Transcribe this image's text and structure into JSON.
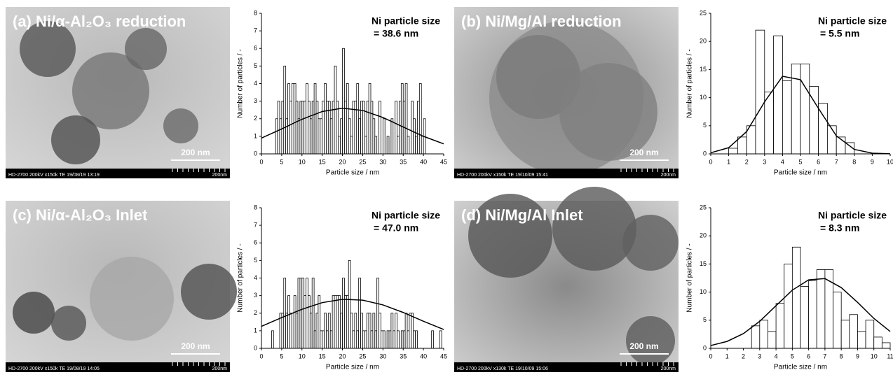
{
  "images": [
    {
      "label": "(a) Ni/α-Al₂O₃ reduction",
      "scale_bar": "200 nm",
      "info": "HD-2700  200kV  x150k  TE  19/08/19  13:19",
      "info_scale": "200nm"
    },
    {
      "label": "(b) Ni/Mg/Al reduction",
      "scale_bar": "200 nm",
      "info": "HD-2700  200kV  x150k  TE  19/10/09  15:41",
      "info_scale": "200nm"
    },
    {
      "label": "(c) Ni/α-Al₂O₃ Inlet",
      "scale_bar": "200 nm",
      "info": "HD-2700  200kV  x150k  TE  19/08/19  14:05",
      "info_scale": "200nm"
    },
    {
      "label": "(d) Ni/Mg/Al Inlet",
      "scale_bar": "200 nm",
      "info": "HD-2700  200kV  x130k  TE  19/10/09  15:06",
      "info_scale": "200nm"
    }
  ],
  "chart_data": [
    {
      "type": "histogram",
      "annotation": [
        "Ni particle size",
        "= 38.6 nm"
      ],
      "xlabel": "Particle size / nm",
      "ylabel": "Number of particles / -",
      "color": "#ffffff",
      "edge_color": "#000000",
      "fit_color": "#000000",
      "bins": [
        3,
        3.5,
        4,
        4.5,
        5,
        5.5,
        6,
        6.5,
        7,
        7.5,
        8,
        8.5,
        9,
        9.5,
        10,
        10.5,
        11,
        11.5,
        12,
        12.5,
        13,
        13.5,
        14,
        14.5,
        15,
        15.5,
        16,
        16.5,
        17,
        17.5,
        18,
        18.5,
        19,
        19.5,
        20,
        20.5,
        21,
        21.5,
        22,
        22.5,
        23,
        23.5,
        24,
        24.5,
        25,
        25.5,
        26,
        26.5,
        27,
        27.5,
        28,
        28.5,
        29,
        29.5,
        30,
        30.5,
        31,
        31.5,
        32,
        32.5,
        33,
        33.5,
        34,
        34.5,
        35,
        35.5,
        36,
        36.5,
        37,
        37.5,
        38,
        38.5,
        39,
        39.5,
        40,
        40.5,
        41
      ],
      "values": [
        0,
        2,
        3,
        2,
        3,
        5,
        2,
        4,
        3,
        4,
        4,
        3,
        2,
        3,
        3,
        3,
        4,
        3,
        2,
        3,
        4,
        3,
        2,
        2,
        3,
        4,
        3,
        3,
        2,
        3,
        5,
        3,
        1,
        2,
        6,
        3,
        4,
        2,
        1,
        3,
        3,
        4,
        2,
        3,
        3,
        1,
        3,
        4,
        3,
        2,
        1,
        0,
        3,
        0,
        2,
        0,
        1,
        0,
        2,
        0,
        3,
        1,
        3,
        4,
        3,
        4,
        1,
        0,
        3,
        2,
        1,
        3,
        4,
        1,
        2,
        0
      ],
      "fit": {
        "x": [
          0,
          5,
          10,
          15,
          20,
          25,
          30,
          35,
          40,
          45
        ],
        "y": [
          0.9,
          1.42,
          1.97,
          2.41,
          2.6,
          2.47,
          2.07,
          1.53,
          1.0,
          0.57
        ]
      },
      "xlim": [
        0,
        45
      ],
      "ylim": [
        0,
        8
      ],
      "xticks": [
        0,
        5,
        10,
        15,
        20,
        25,
        30,
        35,
        40,
        45
      ],
      "yticks": [
        0,
        1,
        2,
        3,
        4,
        5,
        6,
        7,
        8
      ]
    },
    {
      "type": "histogram",
      "annotation": [
        "Ni particle size",
        "= 5.5 nm"
      ],
      "xlabel": "Particle size / nm",
      "ylabel": "Number of particles / -",
      "color": "#ffffff",
      "edge_color": "#000000",
      "fit_color": "#000000",
      "bins": [
        1,
        1.5,
        2,
        2.5,
        3,
        3.5,
        4,
        4.5,
        5,
        5.5,
        6,
        6.5,
        7,
        7.5,
        8
      ],
      "values": [
        1,
        3,
        5,
        22,
        11,
        21,
        13,
        16,
        16,
        12,
        9,
        5,
        3,
        2
      ],
      "fit": {
        "x": [
          0,
          1,
          2,
          3,
          4,
          5,
          6,
          7,
          8,
          9,
          10
        ],
        "y": [
          0.19,
          1.1,
          3.97,
          9.25,
          13.8,
          13.2,
          8.1,
          3.2,
          0.8,
          0.13,
          0.01
        ]
      },
      "xlim": [
        0,
        10
      ],
      "ylim": [
        0,
        25
      ],
      "xticks": [
        0,
        1,
        2,
        3,
        4,
        5,
        6,
        7,
        8,
        9,
        10
      ],
      "yticks": [
        0,
        5,
        10,
        15,
        20,
        25
      ]
    },
    {
      "type": "histogram",
      "annotation": [
        "Ni particle size",
        "= 47.0 nm"
      ],
      "xlabel": "Particle size / nm",
      "ylabel": "Number of particles / -",
      "color": "#ffffff",
      "edge_color": "#000000",
      "fit_color": "#000000",
      "bins": [
        2,
        2.5,
        3,
        3.5,
        4,
        4.5,
        5,
        5.5,
        6,
        6.5,
        7,
        7.5,
        8,
        8.5,
        9,
        9.5,
        10,
        10.5,
        11,
        11.5,
        12,
        12.5,
        13,
        13.5,
        14,
        14.5,
        15,
        15.5,
        16,
        16.5,
        17,
        17.5,
        18,
        18.5,
        19,
        19.5,
        20,
        20.5,
        21,
        21.5,
        22,
        22.5,
        23,
        23.5,
        24,
        24.5,
        25,
        25.5,
        26,
        26.5,
        27,
        27.5,
        28,
        28.5,
        29,
        29.5,
        30,
        30.5,
        31,
        31.5,
        32,
        32.5,
        33,
        33.5,
        34,
        34.5,
        35,
        35.5,
        36,
        36.5,
        37,
        37.5,
        38,
        38.5,
        39,
        39.5,
        40,
        40.5,
        41,
        41.5,
        42,
        42.5,
        43,
        43.5,
        44,
        44.5,
        45
      ],
      "values": [
        0,
        1,
        0,
        0,
        0,
        2,
        2,
        4,
        2,
        3,
        2,
        2,
        3,
        2,
        4,
        4,
        4,
        3,
        4,
        3,
        2,
        4,
        1,
        2,
        3,
        1,
        1,
        2,
        1,
        2,
        1,
        3,
        3,
        3,
        3,
        2,
        4,
        3,
        3,
        5,
        2,
        1,
        2,
        1,
        4,
        2,
        1,
        1,
        2,
        2,
        1,
        2,
        1,
        4,
        2,
        1,
        1,
        0,
        1,
        1,
        2,
        1,
        2,
        1,
        0,
        1,
        1,
        2,
        1,
        2,
        2,
        1,
        1,
        0,
        0,
        0,
        0,
        0,
        0,
        0,
        1,
        0,
        0,
        0,
        1,
        0
      ],
      "fit": {
        "x": [
          0,
          5,
          10,
          15,
          20,
          25,
          30,
          35,
          40,
          45
        ],
        "y": [
          1.25,
          1.75,
          2.22,
          2.6,
          2.79,
          2.74,
          2.47,
          2.04,
          1.54,
          1.07
        ]
      },
      "xlim": [
        0,
        45
      ],
      "ylim": [
        0,
        8
      ],
      "xticks": [
        0,
        5,
        10,
        15,
        20,
        25,
        30,
        35,
        40,
        45
      ],
      "yticks": [
        0,
        1,
        2,
        3,
        4,
        5,
        6,
        7,
        8
      ]
    },
    {
      "type": "histogram",
      "annotation": [
        "Ni particle size",
        "= 8.3 nm"
      ],
      "xlabel": "Particle size / nm",
      "ylabel": "Number of particles / -",
      "color": "#ffffff",
      "edge_color": "#000000",
      "fit_color": "#000000",
      "bins": [
        2.5,
        3,
        3.5,
        4,
        4.5,
        5,
        5.5,
        6,
        6.5,
        7,
        7.5,
        8,
        8.5,
        9,
        9.5,
        10,
        10.5,
        11
      ],
      "values": [
        4,
        5,
        3,
        8,
        15,
        18,
        11,
        12,
        14,
        14,
        10,
        5,
        6,
        3,
        5,
        2,
        1
      ],
      "fit": {
        "x": [
          0,
          1,
          2,
          3,
          4,
          5,
          6,
          7,
          8,
          9,
          10,
          11
        ],
        "y": [
          0.5,
          1.23,
          2.62,
          4.8,
          7.58,
          10.35,
          12.17,
          12.4,
          10.8,
          8.17,
          5.32,
          2.99
        ]
      },
      "xlim": [
        0,
        11
      ],
      "ylim": [
        0,
        25
      ],
      "xticks": [
        0,
        1,
        2,
        3,
        4,
        5,
        6,
        7,
        8,
        9,
        10,
        11
      ],
      "yticks": [
        0,
        5,
        10,
        15,
        20,
        25
      ]
    }
  ]
}
